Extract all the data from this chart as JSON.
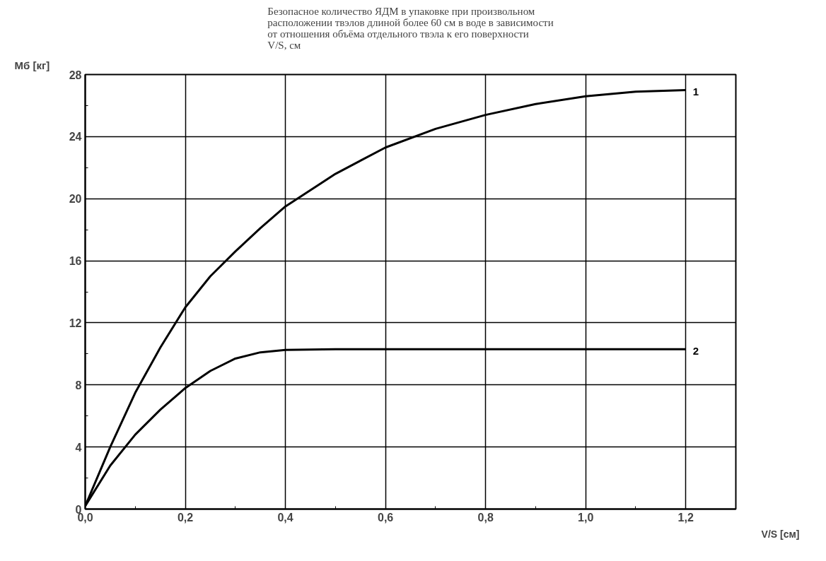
{
  "chart_data": {
    "type": "line",
    "title": "Безопасное количество ЯДМ в упаковке при произвольном\nрасположении твэлов длиной более 60 см в воде в зависимости\nот отношения объёма отдельного твэла к его поверхности\nV/S, см",
    "xlabel": "V/S [см]",
    "ylabel": "Mб [кг]",
    "x": [
      0,
      0.05,
      0.1,
      0.15,
      0.2,
      0.25,
      0.3,
      0.35,
      0.4,
      0.5,
      0.6,
      0.7,
      0.8,
      0.9,
      1.0,
      1.1,
      1.2
    ],
    "series": [
      {
        "name": "1",
        "color": "#000000",
        "values": [
          0.2,
          4.0,
          7.5,
          10.4,
          13.0,
          15.0,
          16.6,
          18.1,
          19.5,
          21.6,
          23.3,
          24.5,
          25.4,
          26.1,
          26.6,
          26.9,
          27.0
        ]
      },
      {
        "name": "2",
        "color": "#000000",
        "values": [
          0.2,
          2.8,
          4.8,
          6.4,
          7.8,
          8.9,
          9.7,
          10.1,
          10.25,
          10.3,
          10.3,
          10.3,
          10.3,
          10.3,
          10.3,
          10.3,
          10.3
        ]
      }
    ],
    "xlim": [
      0,
      1.3
    ],
    "ylim": [
      0,
      28
    ],
    "xticks": [
      {
        "value": 0,
        "label": "0,0"
      },
      {
        "value": 0.2,
        "label": "0,2"
      },
      {
        "value": 0.4,
        "label": "0,4"
      },
      {
        "value": 0.6,
        "label": "0,6"
      },
      {
        "value": 0.8,
        "label": "0,8"
      },
      {
        "value": 1.0,
        "label": "1,0"
      },
      {
        "value": 1.2,
        "label": "1,2"
      }
    ],
    "yticks": [
      0,
      4,
      8,
      12,
      16,
      20,
      24,
      28
    ],
    "grid": true,
    "marker": "none",
    "line_style": "solid"
  }
}
